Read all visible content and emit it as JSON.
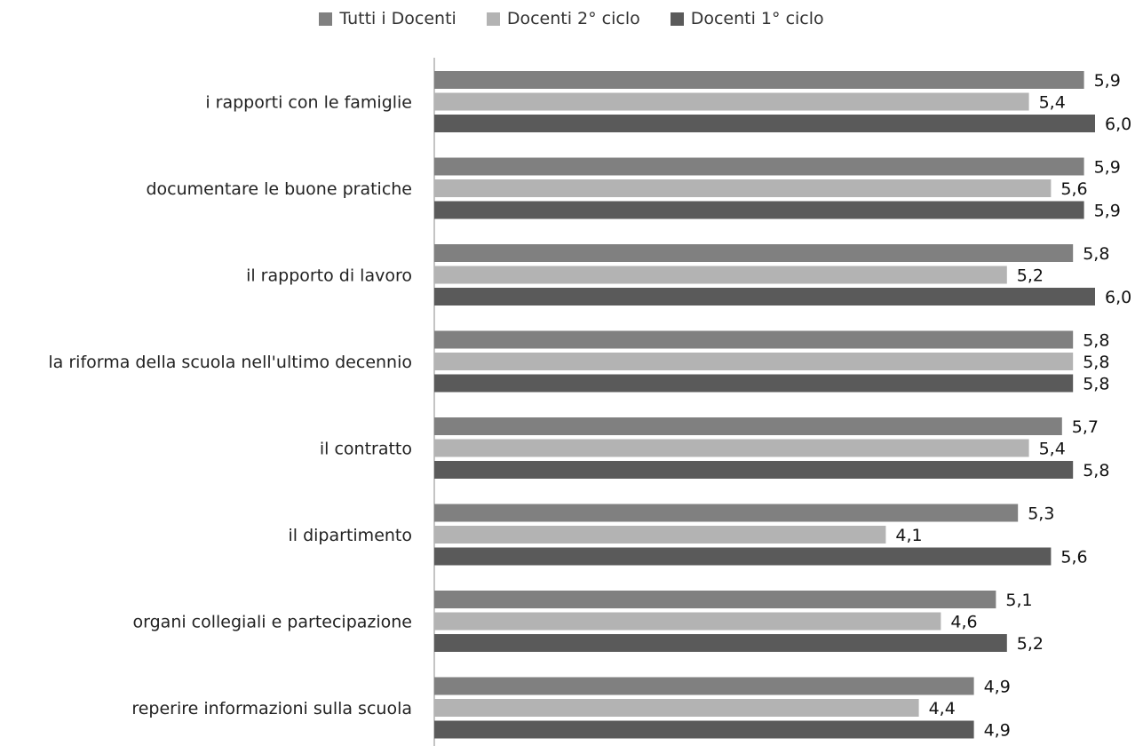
{
  "chart_data": {
    "type": "bar",
    "orientation": "horizontal",
    "categories": [
      "i rapporti con le famiglie",
      "documentare le buone pratiche",
      "il rapporto di lavoro",
      "la riforma della scuola nell'ultimo decennio",
      "il contratto",
      "il dipartimento",
      "organi collegiali e partecipazione",
      "reperire informazioni sulla scuola"
    ],
    "series": [
      {
        "name": "Tutti i Docenti",
        "color": "#808080",
        "values": [
          5.9,
          5.9,
          5.8,
          5.8,
          5.7,
          5.3,
          5.1,
          4.9
        ],
        "labels": [
          "5,9",
          "5,9",
          "5,8",
          "5,8",
          "5,7",
          "5,3",
          "5,1",
          "4,9"
        ]
      },
      {
        "name": "Docenti 2° ciclo",
        "color": "#b3b3b3",
        "values": [
          5.4,
          5.6,
          5.2,
          5.8,
          5.4,
          4.1,
          4.6,
          4.4
        ],
        "labels": [
          "5,4",
          "5,6",
          "5,2",
          "5,8",
          "5,4",
          "4,1",
          "4,6",
          "4,4"
        ]
      },
      {
        "name": "Docenti 1° ciclo",
        "color": "#5a5a5a",
        "values": [
          6.0,
          5.9,
          6.0,
          5.8,
          5.8,
          5.6,
          5.2,
          4.9
        ],
        "labels": [
          "6,0",
          "5,9",
          "6,0",
          "5,8",
          "5,8",
          "5,6",
          "5,2",
          "4,9"
        ]
      }
    ],
    "title": "",
    "xlabel": "",
    "ylabel": "",
    "xlim": [
      0,
      6.0
    ],
    "grid": false,
    "legend_position": "top-center"
  }
}
